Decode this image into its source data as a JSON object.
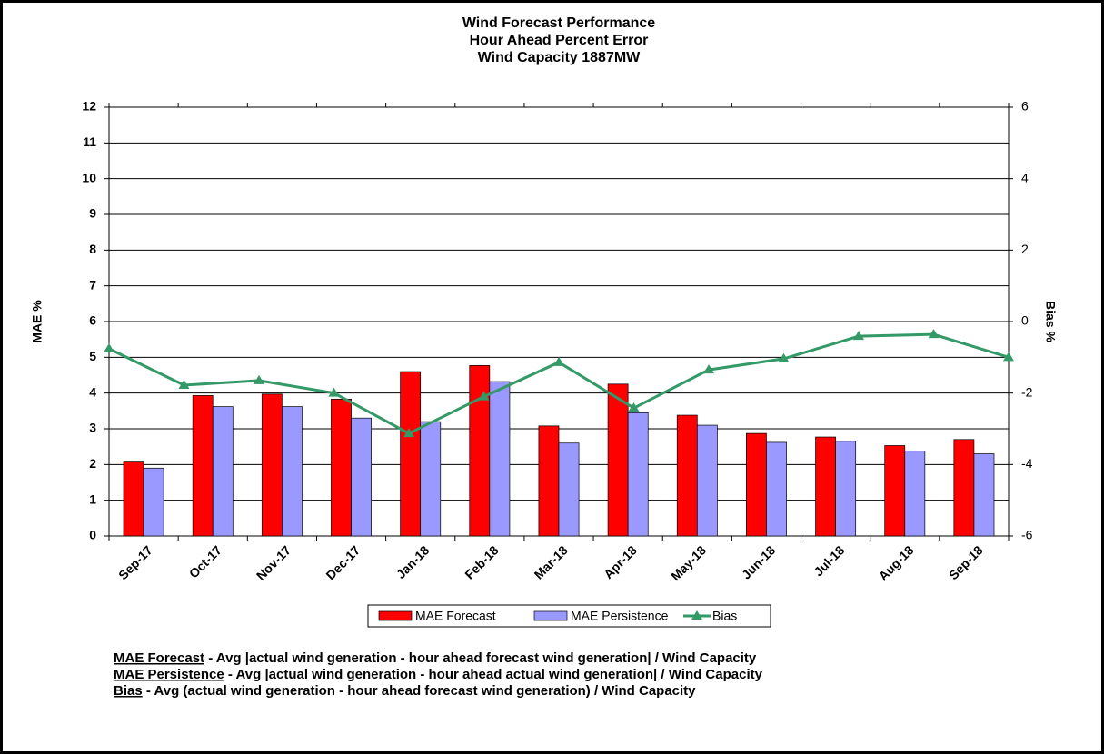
{
  "chart_data": {
    "type": "bar",
    "title": [
      "Wind Forecast Performance",
      "Hour Ahead Percent Error",
      "Wind Capacity 1887MW"
    ],
    "y_label": "MAE %",
    "y2_label": "Bias %",
    "categories": [
      "Sep-17",
      "Oct-17",
      "Nov-17",
      "Dec-17",
      "Jan-18",
      "Feb-18",
      "Mar-18",
      "Apr-18",
      "May-18",
      "Jun-18",
      "Jul-18",
      "Aug-18",
      "Sep-18"
    ],
    "series": [
      {
        "name": "MAE Forecast",
        "color": "#ff0000",
        "values": [
          2.07,
          3.93,
          3.97,
          3.83,
          4.6,
          4.77,
          3.08,
          4.25,
          3.38,
          2.87,
          2.77,
          2.53,
          2.7
        ]
      },
      {
        "name": "MAE Persistence",
        "color": "#9999ff",
        "values": [
          1.9,
          3.62,
          3.62,
          3.3,
          3.2,
          4.32,
          2.6,
          3.45,
          3.1,
          2.62,
          2.65,
          2.38,
          2.3
        ]
      },
      {
        "name": "Bias",
        "color": "#339966",
        "type": "line",
        "axis": "y2",
        "values": [
          -0.76,
          -1.78,
          -1.65,
          -2.0,
          -3.13,
          -2.1,
          -1.14,
          -2.42,
          -1.35,
          -1.04,
          -0.41,
          -0.36,
          -1.0
        ]
      }
    ],
    "ylim": [
      0,
      12
    ],
    "yticks": [
      0,
      1,
      2,
      3,
      4,
      5,
      6,
      7,
      8,
      9,
      10,
      11,
      12
    ],
    "y2lim": [
      -6,
      6
    ],
    "y2ticks": [
      -6,
      -4,
      -2,
      0,
      2,
      4,
      6
    ],
    "grid": true,
    "notes": [
      {
        "term": "MAE Forecast",
        "text": "- Avg |actual wind generation - hour ahead forecast wind generation| / Wind Capacity"
      },
      {
        "term": "MAE Persistence",
        "text": "- Avg |actual wind generation - hour ahead actual wind generation| / Wind Capacity"
      },
      {
        "term": "Bias",
        "text": "- Avg (actual wind generation - hour ahead forecast wind generation) / Wind Capacity"
      }
    ]
  }
}
